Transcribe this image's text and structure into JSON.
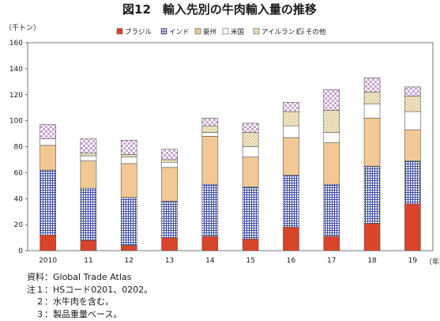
{
  "chart_data": {
    "type": "bar",
    "stacked": true,
    "title": "図12　輸入先別の牛肉輸入量の推移",
    "ylabel": "（千トン）",
    "xlabel": "（年）",
    "ylim": [
      0,
      160
    ],
    "yticks": [
      0,
      20,
      40,
      60,
      80,
      100,
      120,
      140,
      160
    ],
    "grid": false,
    "legend": "top",
    "categories": [
      "2010",
      "11",
      "12",
      "13",
      "14",
      "15",
      "16",
      "17",
      "18",
      "19"
    ],
    "series": [
      {
        "name": "ブラジル",
        "color": "#d9442b",
        "pattern": "solid",
        "values": [
          12,
          8,
          4,
          10,
          11,
          9,
          18,
          11,
          21,
          36
        ]
      },
      {
        "name": "インド",
        "color": "#4a57a8",
        "pattern": "grid",
        "values": [
          50,
          40,
          37,
          28,
          40,
          40,
          40,
          40,
          44,
          33
        ]
      },
      {
        "name": "豪州",
        "color": "#f2c994",
        "pattern": "solid",
        "values": [
          19,
          21,
          26,
          26,
          37,
          23,
          29,
          32,
          37,
          24
        ]
      },
      {
        "name": "米国",
        "color": "#ffffff",
        "pattern": "solid",
        "values": [
          5,
          4,
          5,
          4,
          3,
          8,
          9,
          8,
          11,
          14
        ]
      },
      {
        "name": "アイルランド",
        "color": "#f5ebcc",
        "pattern": "diag",
        "values": [
          0,
          2,
          2,
          2,
          5,
          11,
          11,
          17,
          9,
          12
        ]
      },
      {
        "name": "その他",
        "color": "#d9b4de",
        "pattern": "check",
        "values": [
          11,
          11,
          11,
          8,
          6,
          7,
          7,
          16,
          11,
          7
        ]
      }
    ]
  },
  "notes": [
    "資料：Global Trade Atlas",
    "注１：HSコード0201、0202。",
    "　２：水牛肉を含む。",
    "　３：製品重量ベース。"
  ]
}
